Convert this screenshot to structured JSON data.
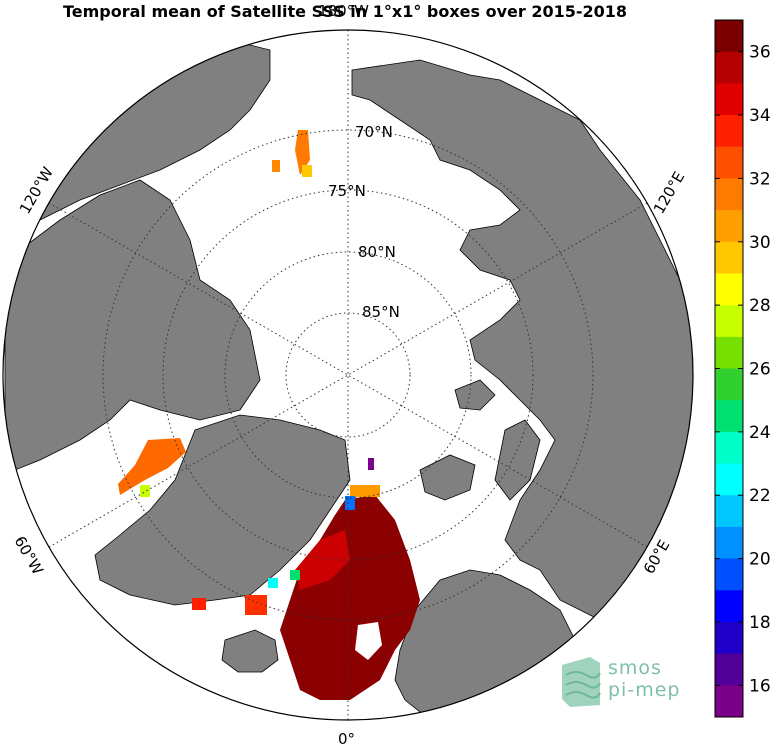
{
  "title": "Temporal mean of Satellite SSS in 1°x1° boxes over 2015-2018",
  "map": {
    "projection": "north-polar-stereographic",
    "land_color": "#808080",
    "ocean_color": "#ffffff",
    "lat_labels": [
      "70°N",
      "75°N",
      "80°N",
      "85°N"
    ],
    "lon_labels": {
      "top": "180°W",
      "bottom": "0°",
      "left_upper": "120°W",
      "left_lower": "60°W",
      "right_upper": "120°E",
      "right_lower": "60°E"
    }
  },
  "colorbar": {
    "min": 15,
    "max": 37,
    "tick_labels": [
      "36",
      "34",
      "32",
      "30",
      "28",
      "26",
      "24",
      "22",
      "20",
      "18",
      "16"
    ],
    "colors": [
      "#7a0000",
      "#b40000",
      "#e00000",
      "#ff2000",
      "#ff5000",
      "#ff7a00",
      "#ffa000",
      "#ffc800",
      "#ffff00",
      "#c8ff00",
      "#78e000",
      "#30d030",
      "#00e070",
      "#00ffc8",
      "#00ffff",
      "#00c8ff",
      "#0090ff",
      "#0050ff",
      "#0000ff",
      "#2000c8",
      "#500096",
      "#7a0087"
    ]
  },
  "logo": {
    "line1": "smos",
    "line2": "pi-mep"
  },
  "icons": {
    "logo": "smos-pi-mep-logo"
  }
}
